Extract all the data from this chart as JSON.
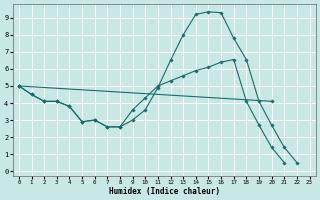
{
  "xlabel": "Humidex (Indice chaleur)",
  "bg_color": "#c8e8e5",
  "grid_color": "#ffffff",
  "line_color": "#1a6b6b",
  "xlim": [
    -0.5,
    23.5
  ],
  "ylim": [
    -0.3,
    9.8
  ],
  "x_ticks": [
    0,
    1,
    2,
    3,
    4,
    5,
    6,
    7,
    8,
    9,
    10,
    11,
    12,
    13,
    14,
    15,
    16,
    17,
    18,
    19,
    20,
    21,
    22,
    23
  ],
  "y_ticks": [
    0,
    1,
    2,
    3,
    4,
    5,
    6,
    7,
    8,
    9
  ],
  "lines": [
    {
      "x": [
        0,
        1,
        2,
        3,
        4,
        5,
        6,
        7,
        8,
        9,
        10,
        11,
        12,
        13,
        14,
        15,
        16,
        17,
        18,
        19,
        20,
        21,
        22,
        23
      ],
      "y": [
        5.0,
        4.5,
        4.1,
        4.1,
        3.8,
        2.9,
        3.0,
        2.6,
        2.6,
        3.0,
        3.6,
        4.9,
        6.5,
        8.0,
        9.2,
        9.35,
        9.3,
        7.8,
        6.55,
        4.1,
        2.7,
        1.4,
        0.5,
        null
      ]
    },
    {
      "x": [
        0,
        1,
        2,
        3,
        4,
        5,
        6,
        7,
        8,
        9,
        10,
        11,
        12,
        13,
        14,
        15,
        16,
        17,
        18,
        19,
        20,
        21,
        22,
        23
      ],
      "y": [
        5.0,
        4.5,
        4.1,
        4.1,
        3.8,
        2.9,
        3.0,
        2.6,
        2.6,
        3.6,
        4.3,
        5.0,
        5.3,
        5.6,
        5.9,
        6.1,
        6.4,
        6.55,
        4.1,
        2.7,
        1.4,
        0.5,
        null,
        null
      ]
    },
    {
      "x": [
        0,
        20
      ],
      "y": [
        5.0,
        4.1
      ]
    }
  ]
}
